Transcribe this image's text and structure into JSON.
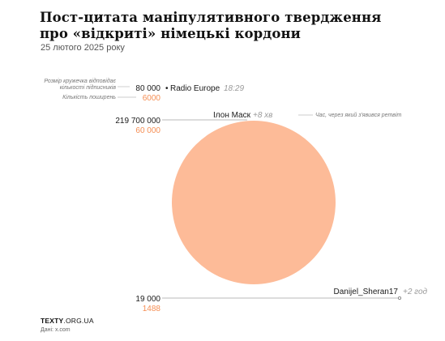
{
  "title_lines": [
    "Пост-цитата маніпулятивного твердження",
    "про «відкриті» німецькі кордони"
  ],
  "subtitle": "25 лютого 2025 року",
  "colors": {
    "accent": "#f58e54",
    "bubble_fill": "#fdbb98",
    "text": "#1a1a1a",
    "muted": "#555555",
    "rule": "#b8b8b8",
    "time_gray": "#999999"
  },
  "legend": {
    "size_note_line1": "Розмір кружечка відповідає",
    "size_note_line2": "кількості підписників",
    "reposts_note": "Кількість поширень",
    "time_note": "Час, через який з'явився ретвіт"
  },
  "chart_data": {
    "type": "bubble",
    "size_encodes": "followers",
    "points": [
      {
        "account": "Radio Europe",
        "followers": 80000,
        "followers_label": "80 000",
        "reposts": 6000,
        "reposts_label": "6000",
        "time": "18:29",
        "bullet": "•"
      },
      {
        "account": "Ілон Маск",
        "followers": 219700000,
        "followers_label": "219 700 000",
        "reposts": 60000,
        "reposts_label": "60 000",
        "time": "+8 хв"
      },
      {
        "account": "Danijel_Sheran17",
        "followers": 19000,
        "followers_label": "19 000",
        "reposts": 1488,
        "reposts_label": "1488",
        "time": "+2 год"
      }
    ]
  },
  "footer": {
    "brand_bold": "TEXTY",
    "brand_light": ".ORG.UA",
    "source": "Дані: x.com"
  }
}
